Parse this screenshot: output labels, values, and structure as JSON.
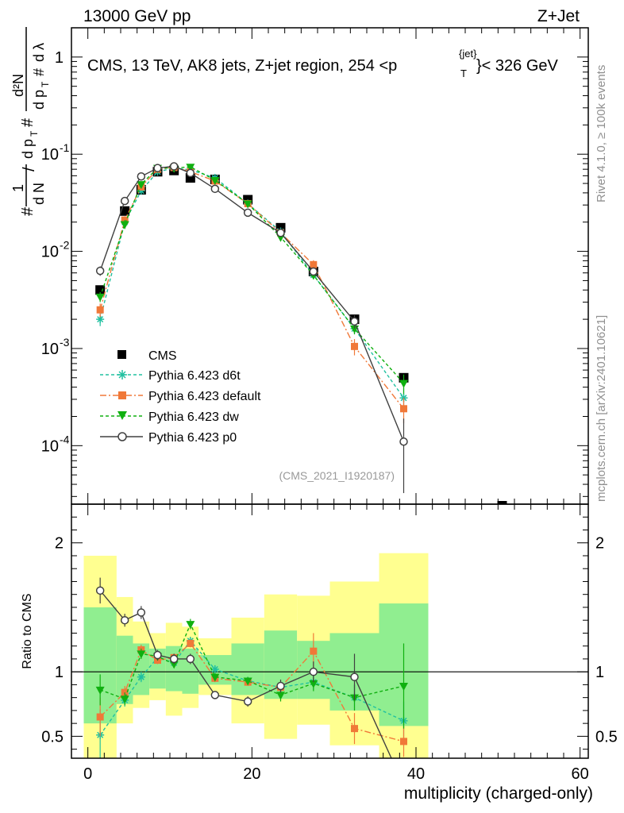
{
  "header": {
    "left_label": "13000 GeV pp",
    "right_label": "Z+Jet",
    "plot_title_main": "CMS, 13 TeV, AK8 jets, Z+jet region, 254 <p",
    "plot_title_sub": "T",
    "plot_title_sup": "{jet}",
    "plot_title_end": "}< 326 GeV",
    "side_label_top": "Rivet 4.1.0, ≥ 100k events",
    "side_label_bottom": "mcplots.cern.ch [arXiv:2401.10621]",
    "analysis_id": "(CMS_2021_I1920187)"
  },
  "colors": {
    "cms": "#000000",
    "d6t": "#20c0a0",
    "default": "#f07838",
    "dw": "#10b010",
    "p0": "#404040",
    "band_green": "#90ee90",
    "band_yellow": "#ffff90"
  },
  "chart_data": [
    {
      "type": "scatter",
      "panel": "main",
      "ylabel": "1/N dN/dp_T # d^2N / dp_T # dλ",
      "yscale": "log",
      "ylim": [
        2.5e-05,
        2.0
      ],
      "xlim": [
        -2,
        61
      ],
      "y_tick_labels": [
        "1",
        "10^-1",
        "10^-2",
        "10^-3",
        "10^-4"
      ],
      "y_tick_values": [
        1,
        0.1,
        0.01,
        0.001,
        0.0001
      ],
      "legend_position": "lower-left",
      "series": [
        {
          "key": "cms",
          "name": "CMS",
          "marker": "square",
          "x": [
            1.5,
            4.5,
            6.5,
            8.5,
            10.5,
            12.5,
            15.5,
            19.5,
            23.5,
            27.5,
            32.5,
            38.5,
            50.5
          ],
          "y": [
            0.004,
            0.026,
            0.043,
            0.066,
            0.068,
            0.057,
            0.055,
            0.034,
            0.0175,
            0.0062,
            0.002,
            0.0005,
            2.2e-05
          ]
        },
        {
          "key": "d6t",
          "name": "Pythia 6.423 d6t",
          "marker": "star",
          "x": [
            1.5,
            4.5,
            6.5,
            8.5,
            10.5,
            12.5,
            15.5,
            19.5,
            23.5,
            27.5,
            32.5,
            38.5
          ],
          "y": [
            0.002,
            0.02,
            0.042,
            0.066,
            0.072,
            0.069,
            0.057,
            0.031,
            0.016,
            0.0057,
            0.0016,
            0.00031
          ],
          "err": [
            0.0003,
            0.002,
            0.002,
            0.002,
            0.002,
            0.002,
            0.002,
            0.001,
            0.0007,
            0.0004,
            0.0002,
            8e-05
          ]
        },
        {
          "key": "default",
          "name": "Pythia 6.423 default",
          "marker": "square-small",
          "x": [
            1.5,
            4.5,
            6.5,
            8.5,
            10.5,
            12.5,
            15.5,
            19.5,
            23.5,
            27.5,
            32.5,
            38.5
          ],
          "y": [
            0.0025,
            0.021,
            0.046,
            0.07,
            0.073,
            0.066,
            0.053,
            0.031,
            0.0155,
            0.0073,
            0.00105,
            0.00024
          ],
          "err": [
            0.0004,
            0.002,
            0.002,
            0.002,
            0.002,
            0.002,
            0.002,
            0.001,
            0.0007,
            0.0008,
            0.0002,
            7e-05
          ]
        },
        {
          "key": "dw",
          "name": "Pythia 6.423 dw",
          "marker": "triangle-down",
          "x": [
            1.5,
            4.5,
            6.5,
            8.5,
            10.5,
            12.5,
            15.5,
            19.5,
            23.5,
            27.5,
            32.5,
            38.5
          ],
          "y": [
            0.0034,
            0.019,
            0.049,
            0.072,
            0.072,
            0.074,
            0.054,
            0.031,
            0.014,
            0.0057,
            0.0016,
            0.00044
          ],
          "err": [
            0.0004,
            0.002,
            0.002,
            0.002,
            0.002,
            0.002,
            0.002,
            0.001,
            0.0007,
            0.0004,
            0.0002,
            0.0001
          ]
        },
        {
          "key": "p0",
          "name": "Pythia 6.423 p0",
          "marker": "circle-open",
          "x": [
            1.5,
            4.5,
            6.5,
            8.5,
            10.5,
            12.5,
            15.5,
            19.5,
            23.5,
            27.5,
            32.5,
            38.5
          ],
          "y": [
            0.0063,
            0.033,
            0.059,
            0.072,
            0.075,
            0.064,
            0.044,
            0.025,
            0.0155,
            0.0062,
            0.0019,
            0.00011
          ],
          "err": [
            0.0007,
            0.002,
            0.002,
            0.002,
            0.002,
            0.002,
            0.002,
            0.001,
            0.0007,
            0.0004,
            0.0003,
            8e-05
          ]
        }
      ]
    },
    {
      "type": "scatter",
      "panel": "ratio",
      "ylabel": "Ratio to CMS",
      "ylim": [
        0.33,
        2.3
      ],
      "xlim": [
        -2,
        61
      ],
      "xlabel": "multiplicity (charged-only)",
      "x_tick_labels": [
        "0",
        "20",
        "40",
        "60"
      ],
      "x_tick_values": [
        0,
        20,
        40,
        60
      ],
      "y_tick_labels": [
        "2",
        "1",
        "0.5"
      ],
      "y_tick_values": [
        2,
        1,
        0.5
      ],
      "bins": [
        [
          -0.5,
          3.5
        ],
        [
          3.5,
          5.5
        ],
        [
          5.5,
          7.5
        ],
        [
          7.5,
          9.5
        ],
        [
          9.5,
          11.5
        ],
        [
          11.5,
          13.5
        ],
        [
          13.5,
          17.5
        ],
        [
          17.5,
          21.5
        ],
        [
          21.5,
          25.5
        ],
        [
          25.5,
          29.5
        ],
        [
          29.5,
          35.5
        ],
        [
          35.5,
          41.5
        ]
      ],
      "band_green": [
        [
          0.6,
          1.5
        ],
        [
          0.75,
          1.28
        ],
        [
          0.82,
          1.22
        ],
        [
          0.87,
          1.18
        ],
        [
          0.85,
          1.2
        ],
        [
          0.83,
          1.18
        ],
        [
          0.9,
          1.13
        ],
        [
          0.82,
          1.22
        ],
        [
          0.79,
          1.32
        ],
        [
          0.79,
          1.24
        ],
        [
          0.7,
          1.3
        ],
        [
          0.58,
          1.53
        ]
      ],
      "band_yellow": [
        [
          0.33,
          1.9
        ],
        [
          0.6,
          1.58
        ],
        [
          0.72,
          1.39
        ],
        [
          0.78,
          1.3
        ],
        [
          0.66,
          1.38
        ],
        [
          0.72,
          1.35
        ],
        [
          0.82,
          1.26
        ],
        [
          0.6,
          1.42
        ],
        [
          0.48,
          1.6
        ],
        [
          0.59,
          1.59
        ],
        [
          0.43,
          1.7
        ],
        [
          0.33,
          1.92
        ]
      ],
      "reference_line": 1,
      "series": [
        {
          "key": "d6t",
          "x": [
            1.5,
            4.5,
            6.5,
            8.5,
            10.5,
            12.5,
            15.5,
            19.5,
            23.5,
            27.5,
            32.5,
            38.5
          ],
          "y": [
            0.51,
            0.78,
            0.96,
            1.11,
            1.07,
            1.24,
            1.02,
            0.93,
            0.88,
            0.92,
            0.8,
            0.62
          ],
          "err": [
            0.2,
            0.05,
            0.04,
            0.03,
            0.03,
            0.03,
            0.03,
            0.03,
            0.05,
            0.06,
            0.1,
            0.15
          ]
        },
        {
          "key": "default",
          "x": [
            1.5,
            4.5,
            6.5,
            8.5,
            10.5,
            12.5,
            15.5,
            19.5,
            23.5,
            27.5,
            32.5,
            38.5
          ],
          "y": [
            0.65,
            0.84,
            1.17,
            1.09,
            1.11,
            1.22,
            0.95,
            0.92,
            0.88,
            1.16,
            0.56,
            0.46
          ],
          "err": [
            0.15,
            0.05,
            0.04,
            0.03,
            0.03,
            0.03,
            0.03,
            0.03,
            0.05,
            0.14,
            0.12,
            0.12
          ]
        },
        {
          "key": "dw",
          "x": [
            1.5,
            4.5,
            6.5,
            8.5,
            10.5,
            12.5,
            15.5,
            19.5,
            23.5,
            27.5,
            32.5,
            38.5
          ],
          "y": [
            0.86,
            0.79,
            1.14,
            1.12,
            1.06,
            1.37,
            0.96,
            0.93,
            0.82,
            0.91,
            0.8,
            0.89
          ],
          "err": [
            0.12,
            0.05,
            0.04,
            0.03,
            0.03,
            0.04,
            0.03,
            0.03,
            0.05,
            0.06,
            0.1,
            0.33
          ]
        },
        {
          "key": "p0",
          "x": [
            1.5,
            4.5,
            6.5,
            8.5,
            10.5,
            12.5,
            15.5,
            19.5,
            23.5,
            27.5,
            32.5,
            37.0
          ],
          "y": [
            1.63,
            1.4,
            1.46,
            1.13,
            1.1,
            1.1,
            0.82,
            0.77,
            0.89,
            1.0,
            0.96,
            0.28
          ],
          "err": [
            0.1,
            0.05,
            0.05,
            0.04,
            0.04,
            0.04,
            0.03,
            0.04,
            0.05,
            0.08,
            0.18,
            0.0
          ]
        }
      ]
    }
  ]
}
